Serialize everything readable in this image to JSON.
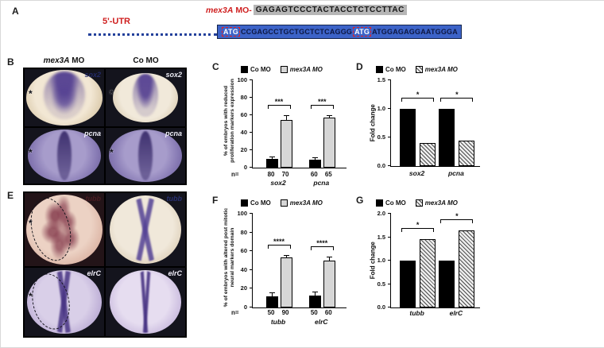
{
  "panel_labels": {
    "a": "A",
    "b": "B",
    "c": "C",
    "d": "D",
    "e": "E",
    "f": "F",
    "g": "G"
  },
  "panel_a": {
    "utr_label": "5'-UTR",
    "mo_gene": "mex3A",
    "mo_suffix": " MO-",
    "top_seq": {
      "pre": "GAGAGTCCC",
      "bold": "TAC",
      "post": "TACCTCTCCTTAC"
    },
    "cds_seq": {
      "atg1": "ATG",
      "mid": "CCGAGCCTGCTGCTCTCAGGG",
      "atg2": "ATG",
      "end": "ATGGAGAGGAATGGGA"
    },
    "colors": {
      "accent_red": "#cf1f1f",
      "cds_box_blue": "#3c63c8",
      "target_seq_gray": "#b6b6b6"
    }
  },
  "panel_b": {
    "col1_gene": "mex3A",
    "col1_rest": " MO",
    "col2": "Co MO",
    "cells": [
      {
        "marker": "sox2",
        "asterisk": "*"
      },
      {
        "marker": "sox2",
        "asterisk": "*"
      },
      {
        "marker": "pcna",
        "asterisk": "*"
      },
      {
        "marker": "pcna",
        "asterisk": "*"
      }
    ]
  },
  "panel_e": {
    "cells": [
      {
        "marker": "tubb",
        "asterisk": "*"
      },
      {
        "marker": "tubb",
        "asterisk": ""
      },
      {
        "marker": "elrC",
        "asterisk": "*"
      },
      {
        "marker": "elrC",
        "asterisk": ""
      }
    ]
  },
  "chart_data": [
    {
      "id": "C",
      "type": "bar",
      "categories": [
        "sox2",
        "pcna"
      ],
      "series": [
        {
          "name": "Co MO",
          "values": [
            10,
            9
          ],
          "errors": [
            2,
            1.5
          ],
          "color": "#000000",
          "pattern": "solid"
        },
        {
          "name": "mex3A MO",
          "values": [
            55,
            57
          ],
          "errors": [
            4,
            2
          ],
          "color": "#d6d6d6",
          "pattern": "solid"
        }
      ],
      "ylabel": "% of embryos with reduced proliferation markers expression",
      "ylim": [
        0,
        100
      ],
      "yticks": [
        0,
        20,
        40,
        60,
        80,
        100
      ],
      "significance": [
        "***",
        "***"
      ],
      "n_label": "n=",
      "n_values": [
        80,
        70,
        60,
        65
      ],
      "legend_position": "top",
      "grid": false
    },
    {
      "id": "D",
      "type": "bar",
      "categories": [
        "sox2",
        "pcna"
      ],
      "series": [
        {
          "name": "Co MO",
          "values": [
            1.0,
            1.0
          ],
          "color": "#000000",
          "pattern": "solid"
        },
        {
          "name": "mex3A MO",
          "values": [
            0.4,
            0.45
          ],
          "color": "#ececec",
          "pattern": "hatch"
        }
      ],
      "ylabel": "Fold change",
      "ylim": [
        0,
        1.5
      ],
      "yticks": [
        0,
        0.5,
        1.0,
        1.5
      ],
      "significance": [
        "*",
        "*"
      ],
      "legend_position": "top",
      "grid": false
    },
    {
      "id": "F",
      "type": "bar",
      "categories": [
        "tubb",
        "elrC"
      ],
      "series": [
        {
          "name": "Co MO",
          "values": [
            12,
            13
          ],
          "errors": [
            3,
            3
          ],
          "color": "#000000",
          "pattern": "solid"
        },
        {
          "name": "mex3A MO",
          "values": [
            53,
            50
          ],
          "errors": [
            2,
            3
          ],
          "color": "#d6d6d6",
          "pattern": "solid"
        }
      ],
      "ylabel": "% of embryos with altered post mitotic neural markers domain",
      "ylim": [
        0,
        100
      ],
      "yticks": [
        0,
        20,
        40,
        60,
        80,
        100
      ],
      "significance": [
        "****",
        "****"
      ],
      "n_label": "n=",
      "n_values": [
        50,
        90,
        50,
        60
      ],
      "legend_position": "top",
      "grid": false
    },
    {
      "id": "G",
      "type": "bar",
      "categories": [
        "tubb",
        "elrC"
      ],
      "series": [
        {
          "name": "Co MO",
          "values": [
            1.0,
            1.0
          ],
          "color": "#000000",
          "pattern": "solid"
        },
        {
          "name": "mex3A MO",
          "values": [
            1.45,
            1.65
          ],
          "color": "#ececec",
          "pattern": "hatch"
        }
      ],
      "ylabel": "Fold change",
      "ylim": [
        0,
        2.0
      ],
      "yticks": [
        0,
        0.5,
        1.0,
        1.5,
        2.0
      ],
      "significance": [
        "*",
        "*"
      ],
      "legend_position": "top",
      "grid": false
    }
  ]
}
